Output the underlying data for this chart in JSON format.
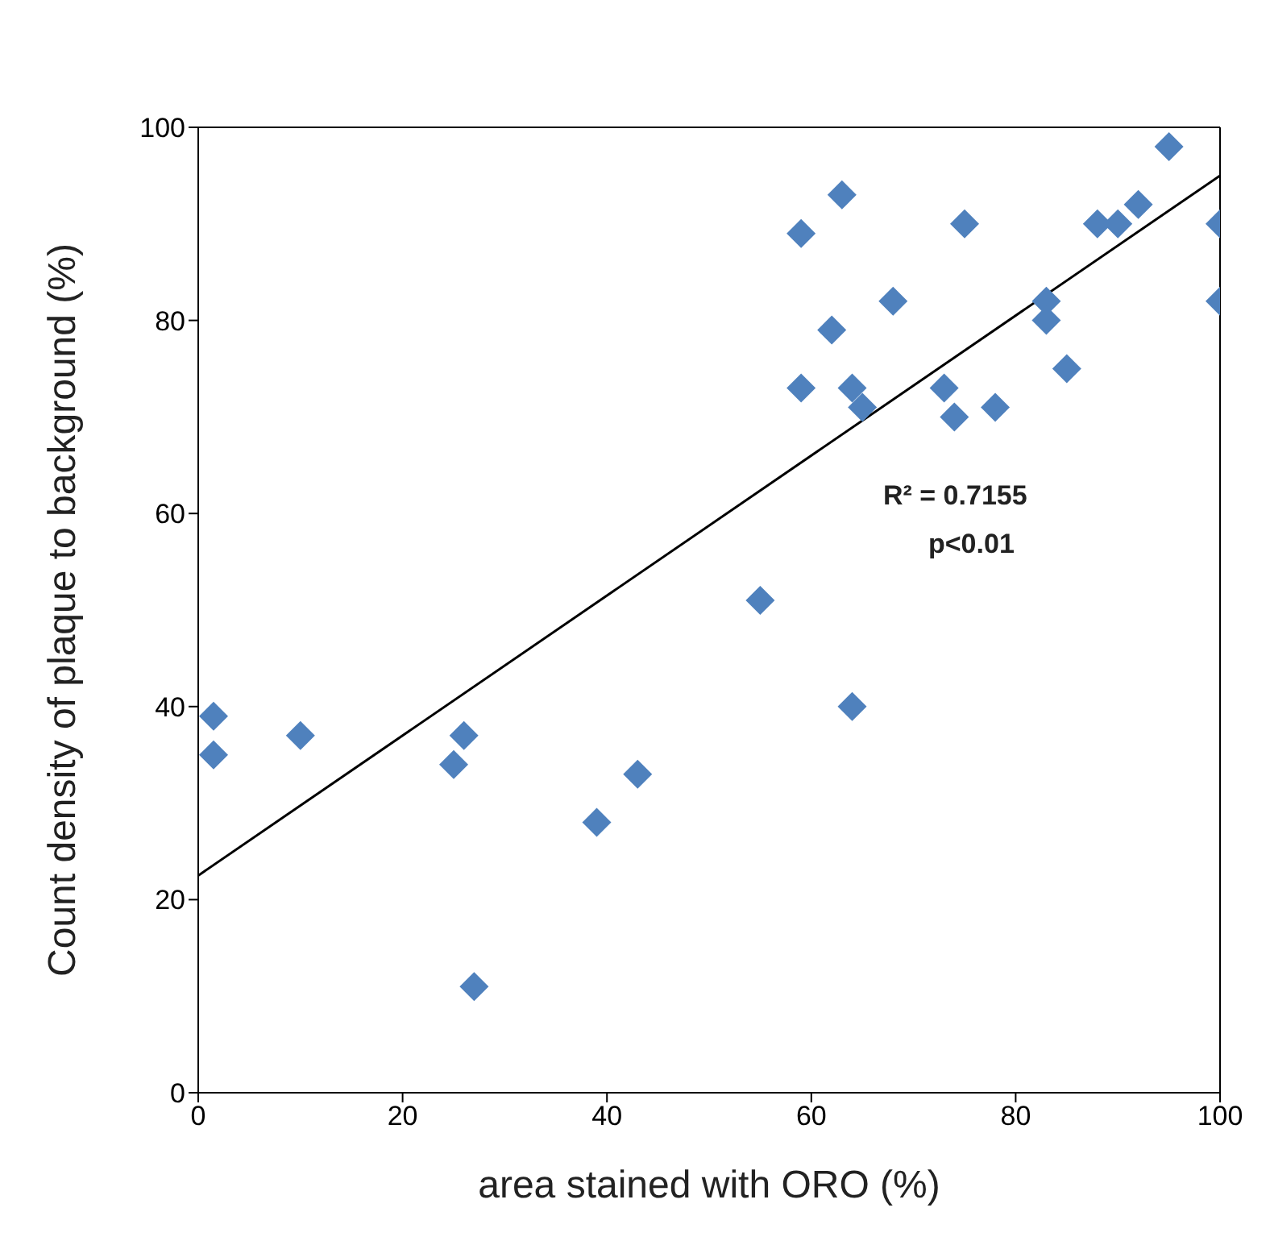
{
  "chart_data": {
    "type": "scatter",
    "xlabel": "area stained with ORO (%)",
    "ylabel": "Count density of plaque to background (%)",
    "xlim": [
      0,
      100
    ],
    "xticks": [
      0,
      20,
      40,
      60,
      80,
      100
    ],
    "ylim": [
      0,
      100
    ],
    "yticks": [
      0,
      20,
      40,
      60,
      80,
      100
    ],
    "marker": "none",
    "series": [
      {
        "marker": "diamond",
        "color": "#4f81bd",
        "x": [
          1.5,
          1.5,
          10,
          25,
          26,
          27,
          39,
          43,
          55,
          59,
          59,
          62,
          63,
          64,
          65,
          64,
          68,
          73,
          74,
          75,
          78,
          83,
          83,
          85,
          88,
          90,
          92,
          95,
          100,
          100
        ],
        "values": [
          39,
          35,
          37,
          34,
          37,
          11,
          28,
          33,
          51,
          89,
          73,
          79,
          93,
          73,
          71,
          40,
          82,
          73,
          70,
          90,
          71,
          82,
          80,
          75,
          90,
          90,
          92,
          98,
          90,
          82
        ]
      },
      {
        "type": "line",
        "color": "#000000",
        "x": [
          0,
          100
        ],
        "values": [
          22.5,
          95
        ],
        "line_style": "solid"
      }
    ],
    "annotations": [
      "R² = 0.7155",
      "p<0.01"
    ]
  }
}
